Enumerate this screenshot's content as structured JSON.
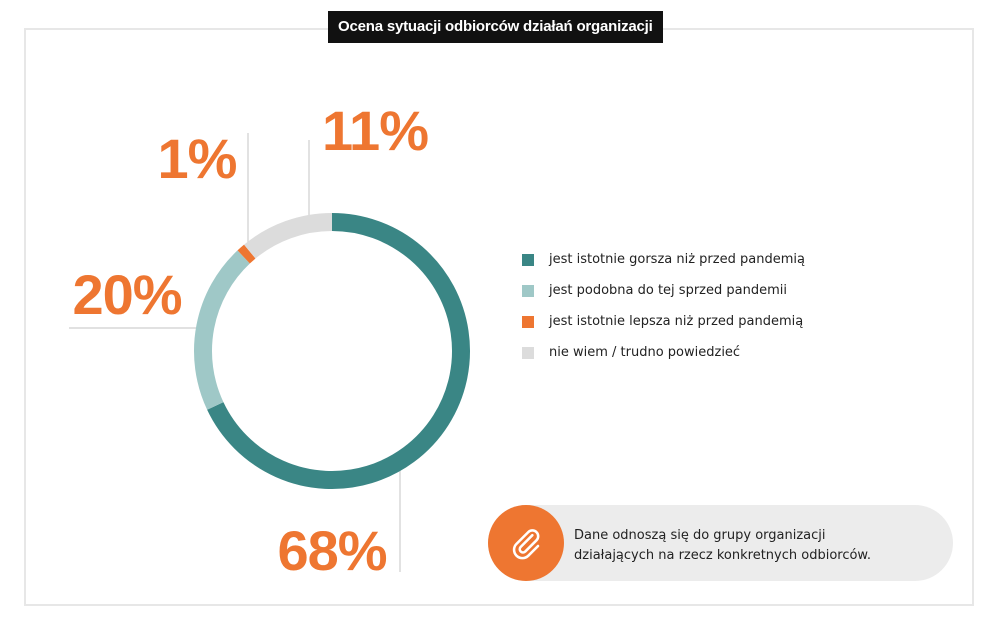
{
  "header": {
    "title": "Ocena sytuacji odbiorców działań organizacji"
  },
  "chart_data": {
    "type": "pie",
    "variant": "donut",
    "unit": "%",
    "series": [
      {
        "label": "jest istotnie gorsza niż przed pandemią",
        "value": 68,
        "value_label": "68%",
        "color": "#3a8685"
      },
      {
        "label": "jest podobna do tej sprzed pandemii",
        "value": 20,
        "value_label": "20%",
        "color": "#9fc8c7"
      },
      {
        "label": "jest istotnie lepsza niż przed pandemią",
        "value": 1,
        "value_label": "1%",
        "color": "#ee7631"
      },
      {
        "label": "nie wiem / trudno powiedzieć",
        "value": 11,
        "value_label": "11%",
        "color": "#dcdcdc"
      }
    ],
    "label_color": "#ee7631",
    "legend_position": "right"
  },
  "note": {
    "icon": "paperclip-icon",
    "badge_color": "#ee7631",
    "lines": [
      "Dane odnoszą się do grupy organizacji",
      "działających na rzecz konkretnych odbiorców."
    ]
  }
}
